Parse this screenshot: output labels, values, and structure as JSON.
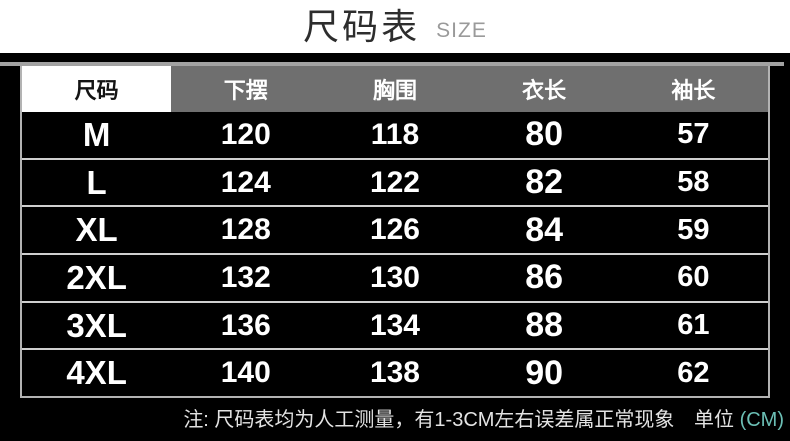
{
  "title": {
    "main": "尺码表",
    "sub": "SIZE"
  },
  "chart_data": {
    "type": "table",
    "title": "尺码表 SIZE",
    "columns": [
      "尺码",
      "下摆",
      "胸围",
      "衣长",
      "袖长"
    ],
    "rows": [
      [
        "M",
        120,
        118,
        80,
        57
      ],
      [
        "L",
        124,
        122,
        82,
        58
      ],
      [
        "XL",
        128,
        126,
        84,
        59
      ],
      [
        "2XL",
        132,
        130,
        86,
        60
      ],
      [
        "3XL",
        136,
        134,
        88,
        61
      ],
      [
        "4XL",
        140,
        138,
        90,
        62
      ]
    ],
    "unit": "CM"
  },
  "note": {
    "text": "注: 尺码表均为人工测量，有1-3CM左右误差属正常现象",
    "unit_label": "单位",
    "unit_value": "(CM)"
  },
  "colors": {
    "panel_bg": "#000000",
    "header_bg": "#6f6f6f",
    "header_first_bg": "#ffffff",
    "row_divider": "#cfcfcf",
    "accent_unit": "#6bbfb5",
    "title_text": "#2d2d2d",
    "title_sub": "#9a9a9a"
  }
}
